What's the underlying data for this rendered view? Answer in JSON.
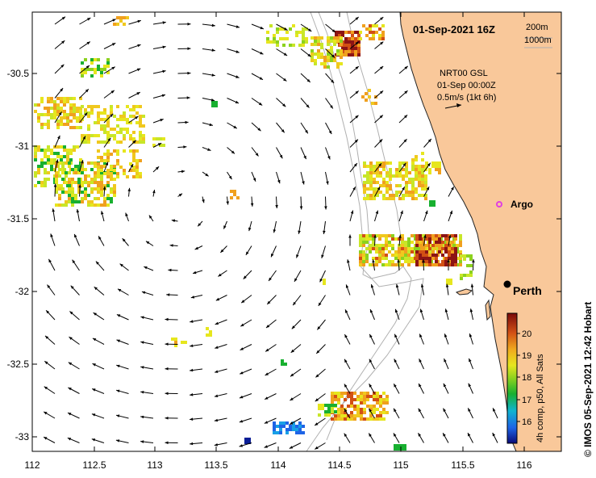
{
  "title": "01-Sep-2021 16Z",
  "contours": {
    "line1": "200m",
    "line2": "1000m"
  },
  "current_info": {
    "line1": "NRT00 GSL",
    "line2": "01-Sep 00:00Z",
    "line3": "0.5m/s (1kt 6h)"
  },
  "argo_label": "Argo",
  "city_label": "Perth",
  "colorbar": {
    "label": "4h comp, p50, All Sats",
    "ticks": [
      "16",
      "17",
      "18",
      "19",
      "20"
    ],
    "min": 15.5,
    "max": 20.5
  },
  "credit": "© IMOS 05-Sep-2021 12:42 Hobart",
  "axes": {
    "x_ticks": [
      "112",
      "112.5",
      "113",
      "113.5",
      "114",
      "114.5",
      "115",
      "115.5",
      "116"
    ],
    "y_ticks": [
      "-30.5",
      "-31",
      "-31.5",
      "-32",
      "-32.5",
      "-33"
    ],
    "lon_range": [
      112,
      116.3
    ],
    "lat_range": [
      -33.1,
      -30.06
    ]
  },
  "colors": {
    "land": "#f9c89a",
    "sea": "#ffffff",
    "argo": "#e040e0",
    "bathymetry": "#b0b0b0"
  }
}
